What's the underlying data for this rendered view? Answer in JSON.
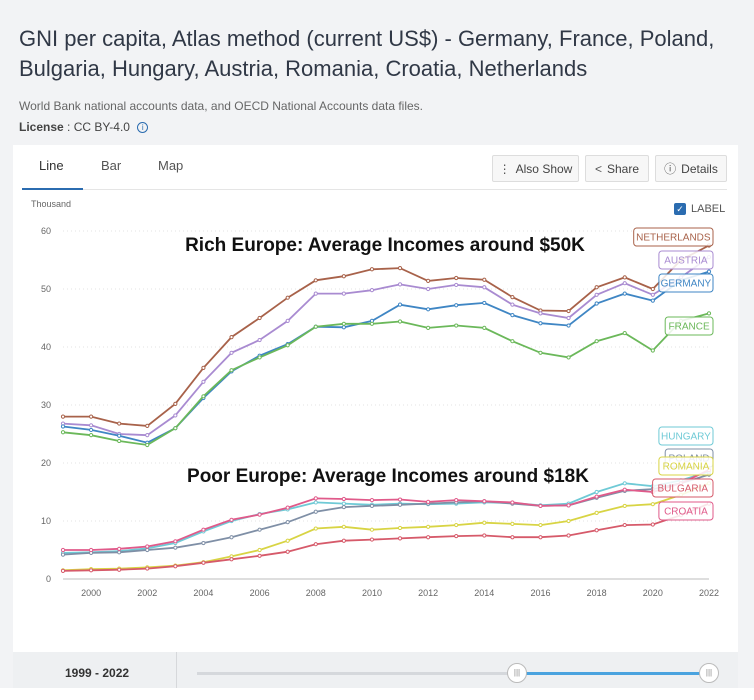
{
  "title": "GNI per capita, Atlas method (current US$) - Germany, France, Poland, Bulgaria, Hungary, Austria, Romania, Croatia, Netherlands",
  "source": "World Bank national accounts data, and OECD National Accounts data files.",
  "license": {
    "label": "License",
    "value": ": CC BY-4.0"
  },
  "tabs": [
    "Line",
    "Bar",
    "Map"
  ],
  "buttons": {
    "also_show": "Also Show",
    "share": "Share",
    "details": "Details"
  },
  "label_toggle": "LABEL",
  "range": "1999 - 2022",
  "colors": {
    "accent": "#2b6cb0",
    "Netherlands": "#a8624a",
    "Austria": "#a98bd1",
    "Germany": "#3f86c4",
    "France": "#6bb85a",
    "Hungary": "#6fcad6",
    "Poland": "#7f8fa6",
    "Romania": "#d8d444",
    "Bulgaria": "#d65a6a",
    "Croatia": "#e05a8a"
  },
  "chart_data": {
    "type": "line",
    "title": "",
    "unit": "Thousand",
    "xlabel": "",
    "ylabel": "",
    "x": [
      1999,
      2000,
      2001,
      2002,
      2003,
      2004,
      2005,
      2006,
      2007,
      2008,
      2009,
      2010,
      2011,
      2012,
      2013,
      2014,
      2015,
      2016,
      2017,
      2018,
      2019,
      2020,
      2021,
      2022
    ],
    "xticks": [
      2000,
      2002,
      2004,
      2006,
      2008,
      2010,
      2012,
      2014,
      2016,
      2018,
      2020,
      2022
    ],
    "yticks": [
      0,
      10,
      20,
      30,
      40,
      50,
      60
    ],
    "ylim": [
      0,
      60
    ],
    "grid": true,
    "annotations": [
      "Rich Europe: Average Incomes around $50K",
      "Poor Europe: Average Incomes around $18K"
    ],
    "series": [
      {
        "name": "Netherlands",
        "label": "NETHERLANDS",
        "values": [
          28.0,
          28.0,
          26.8,
          26.4,
          30.2,
          36.4,
          41.7,
          45.0,
          48.5,
          51.5,
          52.2,
          53.4,
          53.6,
          51.4,
          51.9,
          51.6,
          48.6,
          46.3,
          46.2,
          50.3,
          52.0,
          50.0,
          55.0,
          57.5
        ]
      },
      {
        "name": "Austria",
        "label": "AUSTRIA",
        "values": [
          26.8,
          26.5,
          25.0,
          24.8,
          28.2,
          34.0,
          39.0,
          41.2,
          44.5,
          49.2,
          49.2,
          49.8,
          50.8,
          50.0,
          50.7,
          50.3,
          47.3,
          45.8,
          45.0,
          49.0,
          51.0,
          49.0,
          52.0,
          55.5
        ]
      },
      {
        "name": "Germany",
        "label": "GERMANY",
        "values": [
          26.3,
          25.7,
          24.7,
          23.5,
          26.0,
          31.2,
          35.8,
          38.5,
          40.5,
          43.5,
          43.4,
          44.5,
          47.3,
          46.5,
          47.2,
          47.6,
          45.5,
          44.1,
          43.7,
          47.5,
          49.2,
          48.0,
          51.5,
          53.0
        ]
      },
      {
        "name": "France",
        "label": "FRANCE",
        "values": [
          25.3,
          24.8,
          23.8,
          23.1,
          26.0,
          31.5,
          36.0,
          38.2,
          40.3,
          43.5,
          44.0,
          44.0,
          44.4,
          43.3,
          43.7,
          43.3,
          41.0,
          39.0,
          38.2,
          41.0,
          42.4,
          39.4,
          44.5,
          45.8
        ]
      },
      {
        "name": "Hungary",
        "label": "HUNGARY",
        "values": [
          4.5,
          4.6,
          4.8,
          5.3,
          6.2,
          8.2,
          10.0,
          11.2,
          12.0,
          13.2,
          13.0,
          12.8,
          13.0,
          12.9,
          13.0,
          13.2,
          13.1,
          12.7,
          13.0,
          15.0,
          16.5,
          16.0,
          17.0,
          18.5
        ]
      },
      {
        "name": "Poland",
        "label": "POLAND",
        "values": [
          4.2,
          4.5,
          4.6,
          5.0,
          5.4,
          6.2,
          7.2,
          8.5,
          9.8,
          11.6,
          12.4,
          12.6,
          12.8,
          13.0,
          13.2,
          13.4,
          13.0,
          12.6,
          12.7,
          14.0,
          15.2,
          15.5,
          16.5,
          18.0
        ]
      },
      {
        "name": "Romania",
        "label": "ROMANIA",
        "values": [
          1.5,
          1.7,
          1.8,
          2.0,
          2.3,
          2.9,
          3.9,
          5.0,
          6.6,
          8.7,
          9.0,
          8.5,
          8.8,
          9.0,
          9.3,
          9.7,
          9.5,
          9.3,
          10.0,
          11.4,
          12.6,
          12.9,
          14.5,
          16.5
        ]
      },
      {
        "name": "Bulgaria",
        "label": "BULGARIA",
        "values": [
          1.4,
          1.5,
          1.6,
          1.8,
          2.2,
          2.8,
          3.4,
          4.0,
          4.7,
          6.0,
          6.6,
          6.8,
          7.0,
          7.2,
          7.4,
          7.5,
          7.2,
          7.2,
          7.5,
          8.4,
          9.3,
          9.4,
          11.0,
          13.0
        ]
      },
      {
        "name": "Croatia",
        "label": "CROATIA",
        "values": [
          5.0,
          5.0,
          5.2,
          5.6,
          6.5,
          8.5,
          10.2,
          11.1,
          12.3,
          13.9,
          13.8,
          13.6,
          13.7,
          13.3,
          13.6,
          13.4,
          13.2,
          12.6,
          12.7,
          14.2,
          15.4,
          15.0,
          16.5,
          18.8
        ]
      }
    ]
  }
}
